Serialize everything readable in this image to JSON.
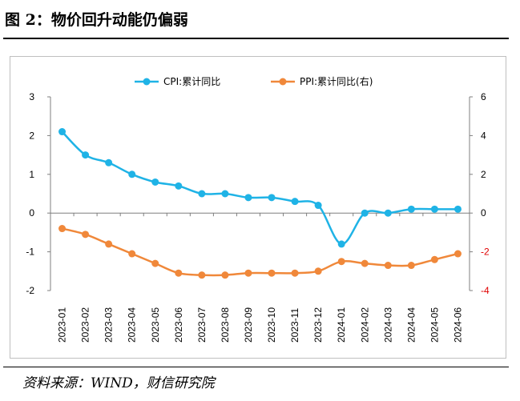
{
  "header": {
    "title": "图 2：物价回升动能仍偏弱"
  },
  "footer": {
    "source": "资料来源：WIND，财信研究院"
  },
  "colors": {
    "cpi": "#1fb3e6",
    "ppi": "#f0883a",
    "axis": "#7f7f7f",
    "negative_right_label": "#e00000"
  },
  "chart_data": {
    "type": "line",
    "title": "",
    "xlabel": "",
    "ylabel": "",
    "categories": [
      "2023-01",
      "2023-02",
      "2023-03",
      "2023-04",
      "2023-05",
      "2023-06",
      "2023-07",
      "2023-08",
      "2023-09",
      "2023-10",
      "2023-11",
      "2023-12",
      "2024-01",
      "2024-02",
      "2024-03",
      "2024-04",
      "2024-05",
      "2024-06"
    ],
    "y_left": {
      "lim": [
        -2,
        3
      ],
      "ticks": [
        "3",
        "2",
        "1",
        "0",
        "-1",
        "-2"
      ]
    },
    "y_right": {
      "lim": [
        -4,
        6
      ],
      "ticks": [
        "6",
        "4",
        "2",
        "0",
        "-2",
        "-4"
      ]
    },
    "legend_position": "top-center",
    "grid": false,
    "series": [
      {
        "name": "CPI:累计同比",
        "axis": "left",
        "values": [
          2.1,
          1.5,
          1.3,
          1.0,
          0.8,
          0.7,
          0.5,
          0.5,
          0.4,
          0.4,
          0.3,
          0.2,
          -0.8,
          0.0,
          0.0,
          0.1,
          0.1,
          0.1
        ]
      },
      {
        "name": "PPI:累计同比(右)",
        "axis": "right",
        "values": [
          -0.8,
          -1.1,
          -1.6,
          -2.1,
          -2.6,
          -3.1,
          -3.2,
          -3.2,
          -3.1,
          -3.1,
          -3.1,
          -3.0,
          -2.5,
          -2.6,
          -2.7,
          -2.7,
          -2.4,
          -2.1
        ]
      }
    ]
  }
}
